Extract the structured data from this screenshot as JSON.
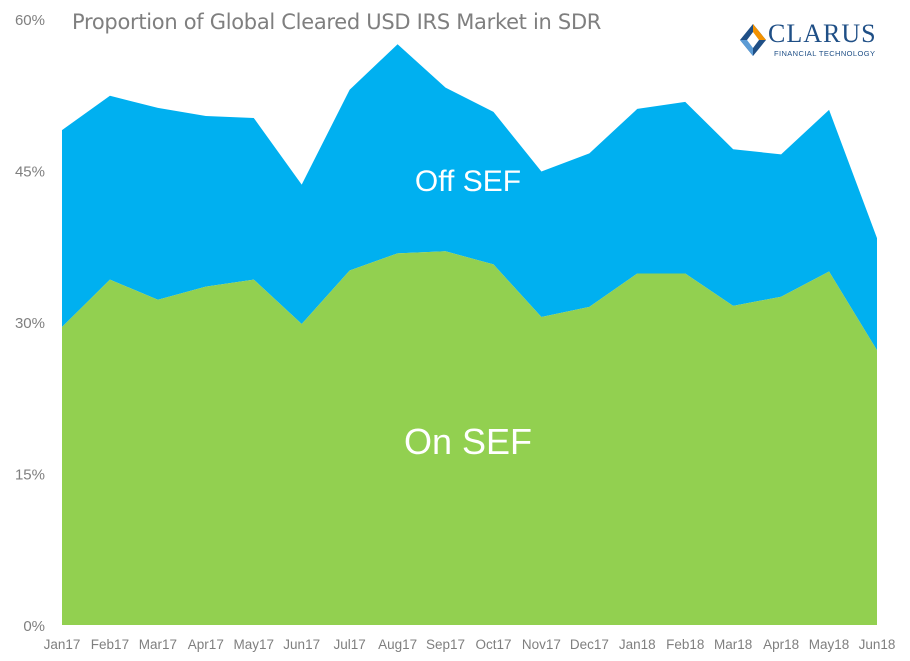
{
  "chart_data": {
    "type": "area",
    "title": "Proportion of Global Cleared USD IRS Market in SDR",
    "categories": [
      "Jan17",
      "Feb17",
      "Mar17",
      "Apr17",
      "May17",
      "Jun17",
      "Jul17",
      "Aug17",
      "Sep17",
      "Oct17",
      "Nov17",
      "Dec17",
      "Jan18",
      "Feb18",
      "Mar18",
      "Apr18",
      "May18",
      "Jun18"
    ],
    "series": [
      {
        "name": "On SEF",
        "color": "#92d050",
        "values": [
          29.5,
          34.2,
          32.2,
          33.5,
          34.2,
          29.8,
          35.1,
          36.8,
          37.0,
          35.7,
          30.5,
          31.5,
          34.8,
          34.8,
          31.6,
          32.5,
          35.0,
          27.2
        ]
      },
      {
        "name": "Off SEF",
        "color": "#00b0f0",
        "values": [
          19.5,
          18.2,
          19.0,
          16.9,
          16.0,
          13.8,
          17.9,
          20.7,
          16.2,
          15.1,
          14.4,
          15.2,
          16.3,
          17.0,
          15.5,
          14.1,
          16.0,
          11.1
        ]
      }
    ],
    "ylim": [
      0,
      60
    ],
    "yticks": [
      "0%",
      "15%",
      "30%",
      "45%",
      "60%"
    ],
    "ytick_values": [
      0,
      15,
      30,
      45,
      60
    ],
    "grid": false,
    "legend": "inline labels"
  },
  "logo": {
    "name": "CLARUS",
    "tagline": "FINANCIAL TECHNOLOGY"
  }
}
